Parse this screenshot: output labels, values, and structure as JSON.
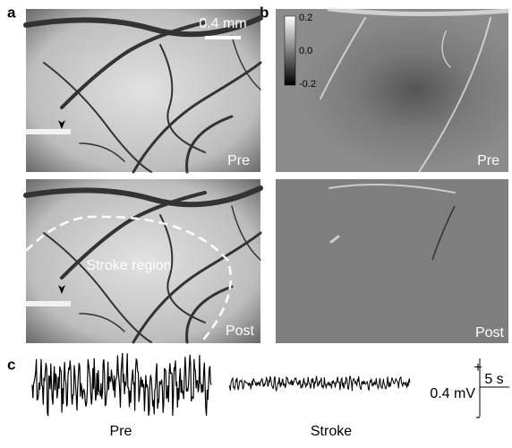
{
  "panels": {
    "a": {
      "label": "a",
      "scale_bar": "0.4 mm",
      "pre": "Pre",
      "post": "Post",
      "region": "Stroke region"
    },
    "b": {
      "label": "b",
      "colorbar": {
        "ticks": [
          "0.2",
          "0.0",
          "-0.2"
        ]
      },
      "pre": "Pre",
      "post": "Post"
    },
    "c": {
      "label": "c",
      "traces": [
        "Pre",
        "Stroke"
      ],
      "scale": {
        "plus": "+",
        "minus": "-",
        "voltage": "0.4 mV",
        "time": "5 s"
      }
    }
  }
}
